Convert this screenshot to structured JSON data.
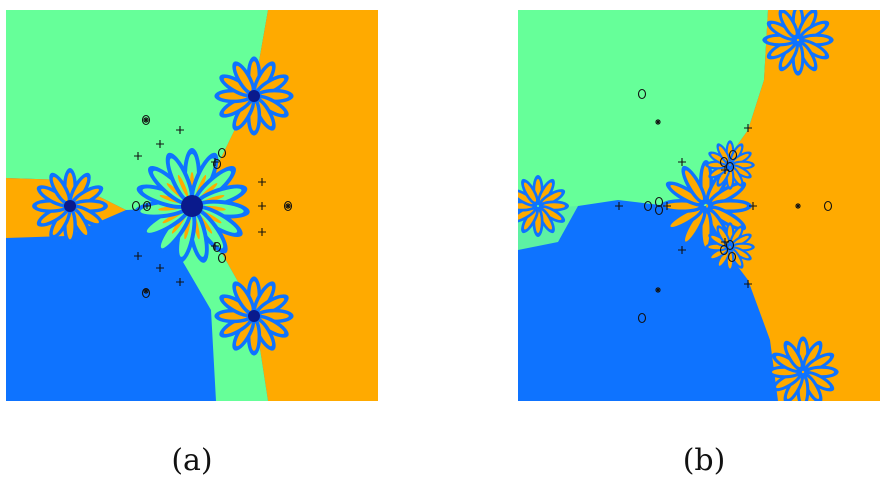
{
  "figure": {
    "palette": {
      "green": "#66ff99",
      "orange": "#ffaa00",
      "blue": "#0e73ff",
      "navy": "#0a1a8c",
      "marker": "#111111"
    },
    "panels": [
      {
        "id": "a",
        "caption": "(a)"
      },
      {
        "id": "b",
        "caption": "(b)"
      }
    ]
  }
}
